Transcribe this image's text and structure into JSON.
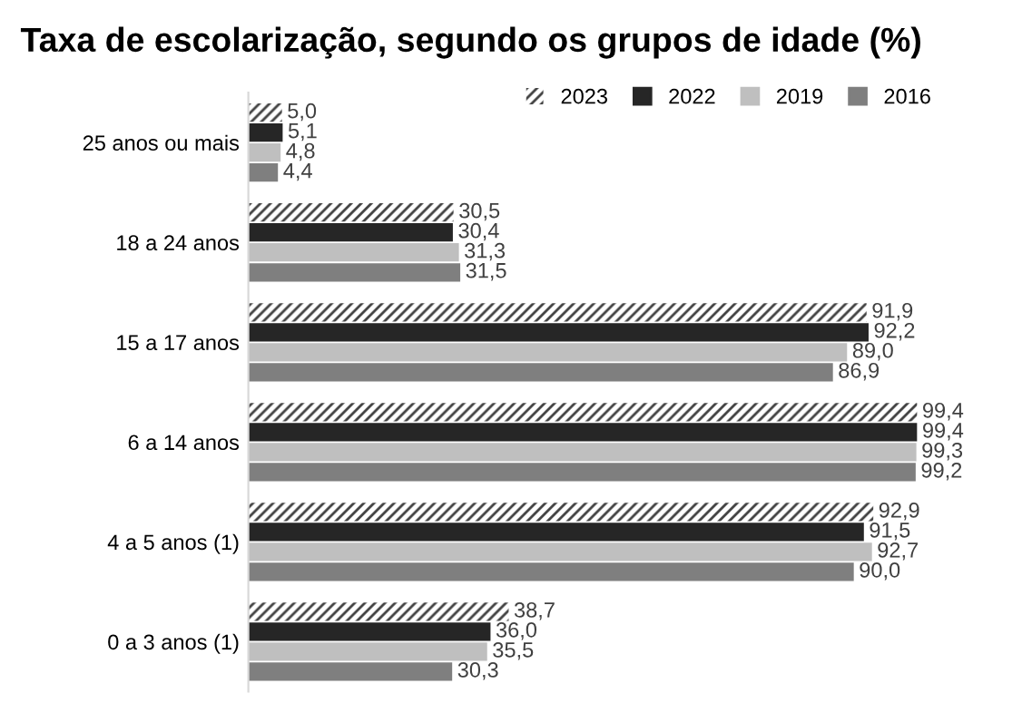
{
  "chart_data": {
    "type": "bar",
    "orientation": "horizontal",
    "title": "Taxa de escolarização, segundo os grupos de idade (%)",
    "categories": [
      "25 anos ou mais",
      "18 a 24 anos",
      "15 a 17 anos",
      "6 a 14 anos",
      "4 a 5 anos (1)",
      "0 a 3 anos (1)"
    ],
    "series": [
      {
        "name": "2023",
        "color": "#404040",
        "values": [
          5.0,
          30.5,
          91.9,
          99.4,
          92.9,
          38.7
        ],
        "value_labels": [
          "5,0",
          "30,5",
          "91,9",
          "99,4",
          "92,9",
          "38,7"
        ]
      },
      {
        "name": "2022",
        "color": "#262626",
        "values": [
          5.1,
          30.4,
          92.2,
          99.4,
          91.5,
          36.0
        ],
        "value_labels": [
          "5,1",
          "30,4",
          "92,2",
          "99,4",
          "91,5",
          "36,0"
        ]
      },
      {
        "name": "2019",
        "color": "#bfbfbf",
        "values": [
          4.8,
          31.3,
          89.0,
          99.3,
          92.7,
          35.5
        ],
        "value_labels": [
          "4,8",
          "31,3",
          "89,0",
          "99,3",
          "92,7",
          "35,5"
        ]
      },
      {
        "name": "2016",
        "color": "#7f7f7f",
        "values": [
          4.4,
          31.5,
          86.9,
          99.2,
          90.0,
          30.3
        ],
        "value_labels": [
          "4,4",
          "31,5",
          "86,9",
          "99,2",
          "90,0",
          "30,3"
        ]
      }
    ],
    "tick_labels": "y",
    "legend": "top right",
    "grid": false
  }
}
